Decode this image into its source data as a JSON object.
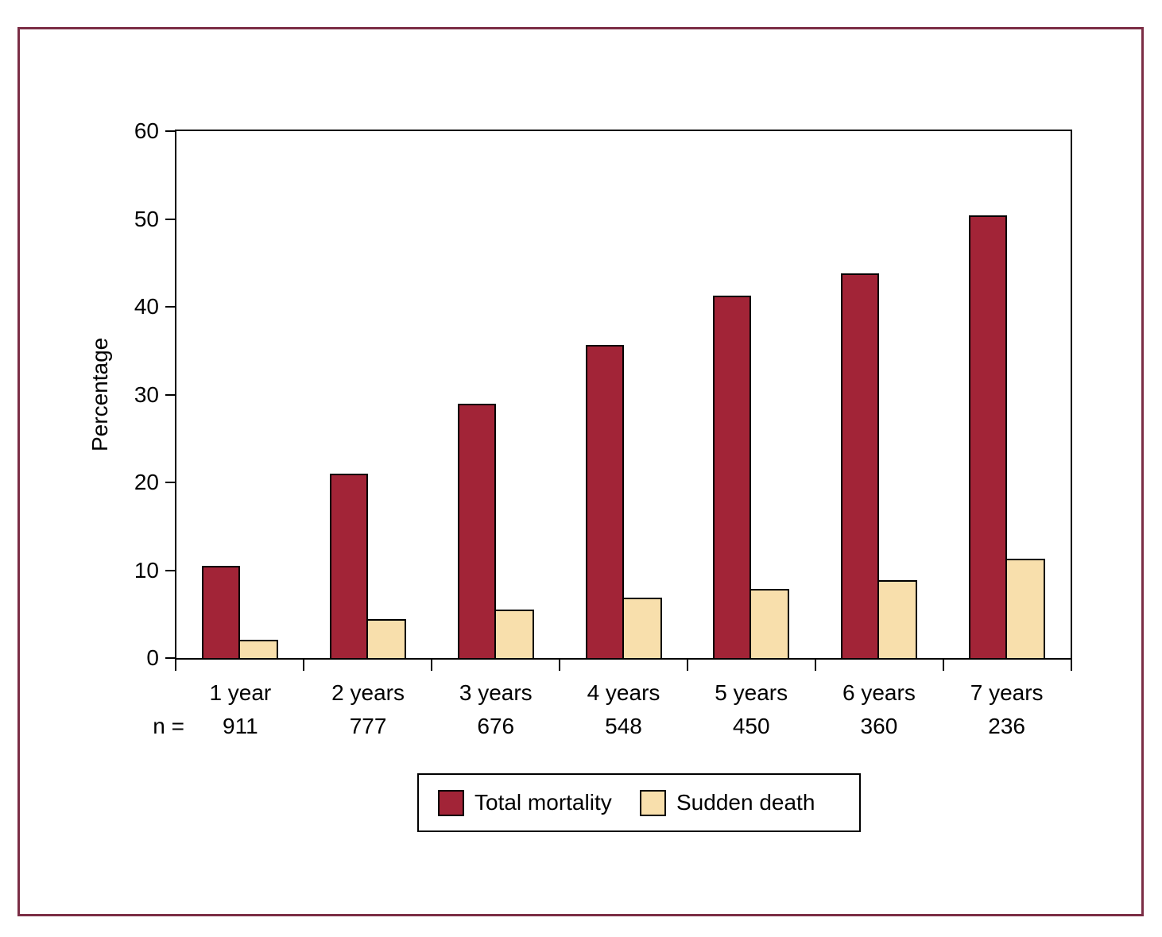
{
  "figure": {
    "frame_color": "#7B2D45",
    "background": "#FFFFFF",
    "axis_color": "#000000"
  },
  "chart_data": {
    "type": "bar",
    "title": "",
    "xlabel": "",
    "ylabel": "Percentage",
    "ylim": [
      0,
      60
    ],
    "yticks": [
      0,
      10,
      20,
      30,
      40,
      50,
      60
    ],
    "grid": false,
    "legend_position": "bottom",
    "categories": [
      "1 year",
      "2 years",
      "3 years",
      "4 years",
      "5 years",
      "6 years",
      "7 years"
    ],
    "n_label": "n =",
    "n_values": [
      "911",
      "777",
      "676",
      "548",
      "450",
      "360",
      "236"
    ],
    "series": [
      {
        "name": "Total mortality",
        "color": "#A22437",
        "values": [
          10.5,
          21.0,
          29.0,
          35.7,
          41.3,
          43.8,
          50.4
        ]
      },
      {
        "name": "Sudden death",
        "color": "#F8DFAC",
        "values": [
          2.1,
          4.4,
          5.5,
          6.9,
          7.9,
          8.9,
          11.3
        ]
      }
    ]
  }
}
